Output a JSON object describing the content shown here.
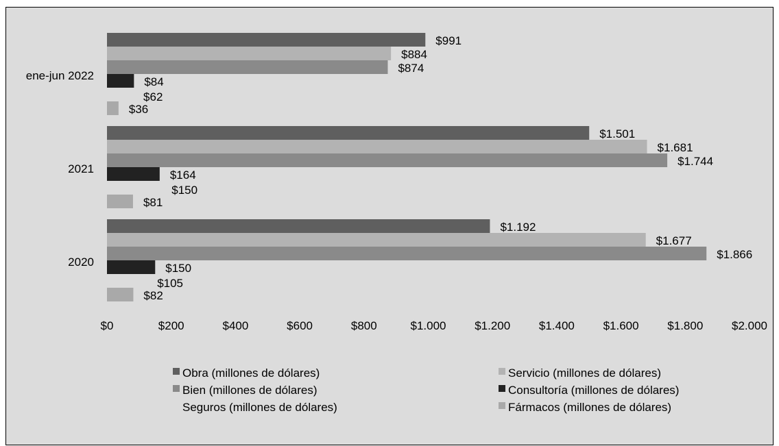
{
  "colors": {
    "background": "#dcdcdc",
    "Obra": "#5f5f5f",
    "Servicio": "#b3b3b3",
    "Bien": "#8a8a8a",
    "Consultoria": "#222222",
    "Seguros": "#dcdcdc",
    "Farmacos": "#a9a9a9"
  },
  "chart_data": {
    "type": "bar",
    "orientation": "horizontal",
    "categories": [
      "ene-jun 2022",
      "2021",
      "2020"
    ],
    "series": [
      {
        "name": "Obra (millones de dólares)",
        "values": [
          991,
          1501,
          1192
        ],
        "labels": [
          "$991",
          "$1.501",
          "$1.192"
        ],
        "color_key": "Obra"
      },
      {
        "name": "Servicio (millones de dólares)",
        "values": [
          884,
          1681,
          1677
        ],
        "labels": [
          "$884",
          "$1.681",
          "$1.677"
        ],
        "color_key": "Servicio"
      },
      {
        "name": "Bien (millones de dólares)",
        "values": [
          874,
          1744,
          1866
        ],
        "labels": [
          "$874",
          "$1.744",
          "$1.866"
        ],
        "color_key": "Bien"
      },
      {
        "name": "Consultoría (millones de dólares)",
        "values": [
          84,
          164,
          150
        ],
        "labels": [
          "$84",
          "$164",
          "$150"
        ],
        "color_key": "Consultoria"
      },
      {
        "name": "Seguros (millones de dólares)",
        "values": [
          62,
          150,
          105
        ],
        "labels": [
          "$62",
          "$150",
          "$105"
        ],
        "color_key": "Seguros"
      },
      {
        "name": "Fármacos (millones de dólares)",
        "values": [
          36,
          81,
          82
        ],
        "labels": [
          "$36",
          "$81",
          "$82"
        ],
        "color_key": "Farmacos"
      }
    ],
    "xlim": [
      0,
      2000
    ],
    "x_ticks": [
      0,
      200,
      400,
      600,
      800,
      1000,
      1200,
      1400,
      1600,
      1800,
      2000
    ],
    "x_tick_labels": [
      "$0",
      "$200",
      "$400",
      "$600",
      "$800",
      "$1.000",
      "$1.200",
      "$1.400",
      "$1.600",
      "$1.800",
      "$2.000"
    ],
    "grid": false,
    "legend_position": "bottom",
    "title": "",
    "xlabel": "",
    "ylabel": ""
  }
}
